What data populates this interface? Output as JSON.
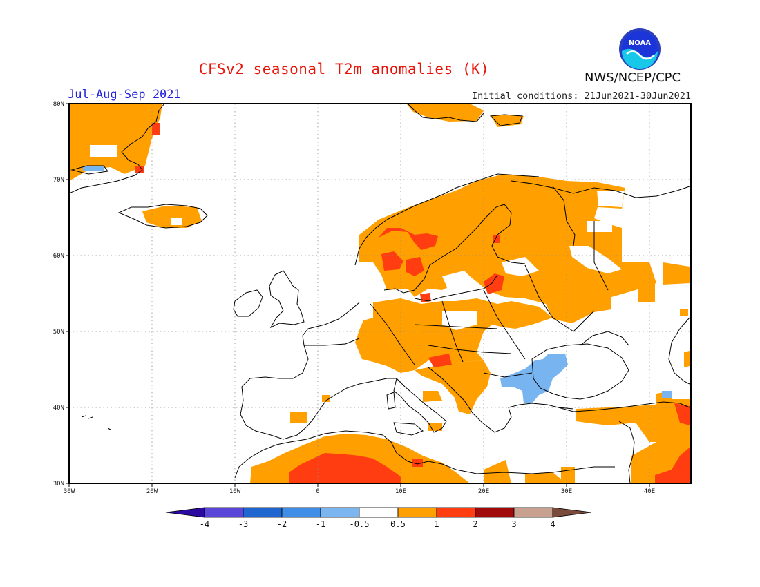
{
  "header": {
    "title": "CFSv2 seasonal T2m anomalies (K)",
    "period": "Jul-Aug-Sep 2021",
    "initial_conditions": "Initial conditions: 21Jun2021-30Jun2021",
    "agency": "NWS/NCEP/CPC",
    "logo_text": "NOAA"
  },
  "map": {
    "lon_range": [
      -30,
      45
    ],
    "lat_range": [
      30,
      80
    ],
    "lon_ticks": [
      "30W",
      "20W",
      "10W",
      "0",
      "10E",
      "20E",
      "30E",
      "40E"
    ],
    "lat_ticks": [
      "30N",
      "40N",
      "50N",
      "60N",
      "70N",
      "80N"
    ],
    "gridlines": "dotted",
    "colors": {
      "warm_0_5_1": "#ffa000",
      "warm_1_2": "#ff3d10",
      "cool_neg1_neg0_5": "#78b4f0",
      "coastline": "#000000"
    }
  },
  "colorbar": {
    "labels": [
      "-4",
      "-3",
      "-2",
      "-1",
      "-0.5",
      "0.5",
      "1",
      "2",
      "3",
      "4"
    ],
    "colors": [
      "#2a0aa0",
      "#5a46d8",
      "#1f66d0",
      "#3f8de6",
      "#7cb6f0",
      "#ffffff",
      "#ffa000",
      "#ff3d10",
      "#a00a0a",
      "#c8a090",
      "#7a4a3a"
    ]
  }
}
